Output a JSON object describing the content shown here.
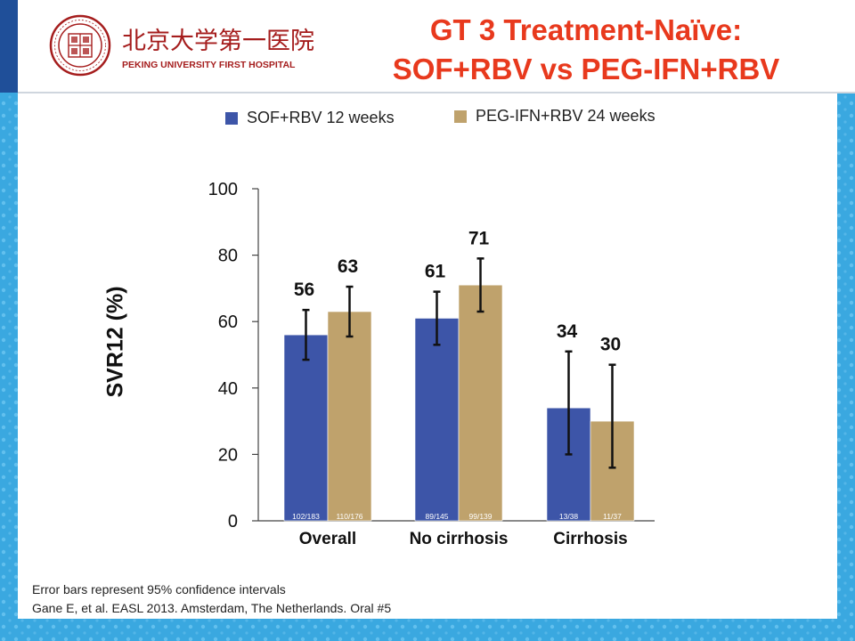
{
  "header": {
    "logo_cn": "北京大学第一医院",
    "logo_en": "PEKING UNIVERSITY FIRST HOSPITAL",
    "title_line1": "GT 3 Treatment-Naïve:",
    "title_line2": "SOF+RBV vs PEG-IFN+RBV"
  },
  "colors": {
    "title": "#e8391d",
    "background": "#3aa8e0",
    "sof": "#3d55a8",
    "peg": "#bfa26c"
  },
  "chart_data": {
    "type": "bar",
    "categories": [
      "Overall",
      "No cirrhosis",
      "Cirrhosis"
    ],
    "series": [
      {
        "name": "SOF+RBV 12 weeks",
        "values": [
          56,
          61,
          34
        ],
        "ci_low": [
          48.5,
          53,
          20
        ],
        "ci_high": [
          63.5,
          69,
          51
        ],
        "counts": [
          "102/183",
          "89/145",
          "13/38"
        ]
      },
      {
        "name": "PEG-IFN+RBV 24 weeks",
        "values": [
          63,
          71,
          30
        ],
        "ci_low": [
          55.5,
          63,
          16
        ],
        "ci_high": [
          70.5,
          79,
          47
        ],
        "counts": [
          "110/176",
          "99/139",
          "11/37"
        ]
      }
    ],
    "ylabel": "SVR12 (%)",
    "ylim": [
      0,
      100
    ],
    "yticks": [
      0,
      20,
      40,
      60,
      80,
      100
    ],
    "legend_position": "top"
  },
  "footnotes": {
    "line1": "Error bars represent 95% confidence intervals",
    "line2": "Gane E, et al. EASL 2013. Amsterdam, The Netherlands.  Oral #5"
  }
}
